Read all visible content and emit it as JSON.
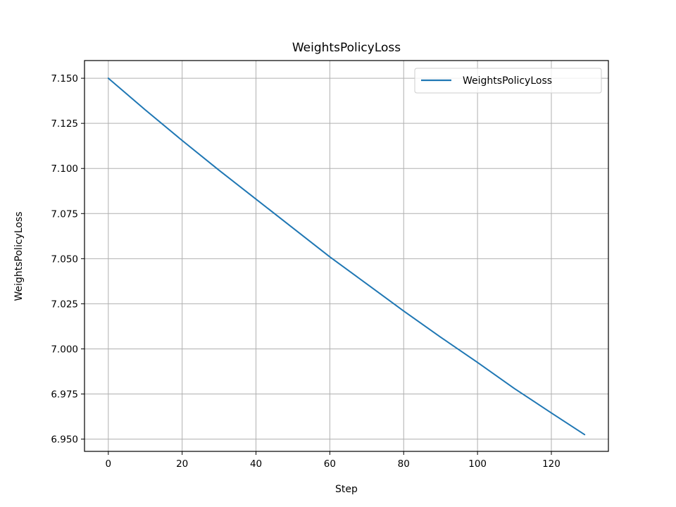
{
  "chart_data": {
    "type": "line",
    "title": "WeightsPolicyLoss",
    "xlabel": "Step",
    "ylabel": "WeightsPolicyLoss",
    "xlim": [
      -6.45,
      135.45
    ],
    "ylim": [
      6.9432,
      7.1598
    ],
    "xticks": [
      0,
      20,
      40,
      60,
      80,
      100,
      120
    ],
    "yticks": [
      6.95,
      6.975,
      7.0,
      7.025,
      7.05,
      7.075,
      7.1,
      7.125,
      7.15
    ],
    "xtick_labels": [
      "0",
      "20",
      "40",
      "60",
      "80",
      "100",
      "120"
    ],
    "ytick_labels": [
      "6.950",
      "6.975",
      "7.000",
      "7.025",
      "7.050",
      "7.075",
      "7.100",
      "7.125",
      "7.150"
    ],
    "grid": true,
    "legend": {
      "placement": "top-right"
    },
    "series": [
      {
        "name": "WeightsPolicyLoss",
        "color": "#1f77b4",
        "x": [
          0,
          10,
          20,
          30,
          40,
          50,
          60,
          70,
          80,
          90,
          100,
          110,
          120,
          129
        ],
        "y": [
          7.15,
          7.1325,
          7.1155,
          7.099,
          7.083,
          7.067,
          7.051,
          7.036,
          7.021,
          7.0065,
          6.9925,
          6.978,
          6.9645,
          6.9525
        ]
      }
    ]
  }
}
